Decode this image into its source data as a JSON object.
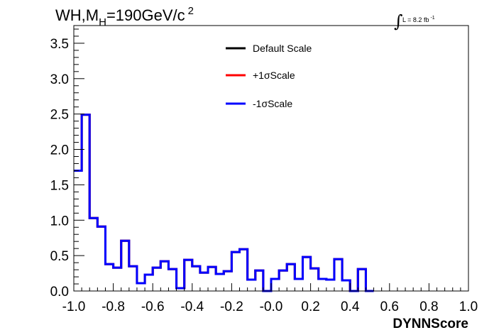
{
  "chart_data": {
    "type": "step",
    "title_main": "WH,M",
    "title_sub": "H",
    "title_rest": "=190GeV/c",
    "title_sup": "2",
    "lumi_main": "L = 8.2 fb",
    "lumi_sup": "-1",
    "xlabel": "DYNNScore",
    "ylabel": "",
    "xlim": [
      -1.0,
      1.0
    ],
    "ylim": [
      0,
      3.75
    ],
    "x_ticks": [
      -1.0,
      -0.8,
      -0.6,
      -0.4,
      -0.2,
      0.0,
      0.2,
      0.4,
      0.6,
      0.8,
      1.0
    ],
    "x_tick_labels": [
      "-1.0",
      "-0.8",
      "-0.6",
      "-0.4",
      "-0.2",
      "-0.0",
      "0.2",
      "0.4",
      "0.6",
      "0.8",
      "1.0"
    ],
    "y_ticks": [
      0.0,
      0.5,
      1.0,
      1.5,
      2.0,
      2.5,
      3.0,
      3.5
    ],
    "y_tick_labels": [
      "0.0",
      "0.5",
      "1.0",
      "1.5",
      "2.0",
      "2.5",
      "3.0",
      "3.5"
    ],
    "legend_position": "top-center",
    "grid": false,
    "bin_edges_start": -1.0,
    "bin_width": 0.04,
    "series": [
      {
        "name": "Default Scale",
        "color": "#000000",
        "values": [
          1.7,
          2.49,
          1.03,
          0.91,
          0.38,
          0.33,
          0.71,
          0.35,
          0.11,
          0.23,
          0.33,
          0.42,
          0.31,
          0.04,
          0.44,
          0.35,
          0.26,
          0.34,
          0.24,
          0.28,
          0.55,
          0.59,
          0.16,
          0.29,
          0.0,
          0.17,
          0.29,
          0.38,
          0.17,
          0.48,
          0.32,
          0.17,
          0.16,
          0.45,
          0.15,
          0.0,
          0.31,
          0.0
        ]
      },
      {
        "name": "+1σScale",
        "color": "#ff0000",
        "values": [
          1.7,
          2.49,
          1.03,
          0.91,
          0.38,
          0.33,
          0.71,
          0.35,
          0.11,
          0.23,
          0.33,
          0.42,
          0.31,
          0.04,
          0.44,
          0.35,
          0.26,
          0.34,
          0.24,
          0.28,
          0.55,
          0.59,
          0.16,
          0.29,
          0.0,
          0.17,
          0.29,
          0.38,
          0.17,
          0.48,
          0.32,
          0.17,
          0.16,
          0.45,
          0.15,
          0.0,
          0.31,
          0.0
        ]
      },
      {
        "name": "-1σScale",
        "color": "#0000ff",
        "values": [
          1.7,
          2.49,
          1.03,
          0.91,
          0.38,
          0.33,
          0.71,
          0.35,
          0.11,
          0.23,
          0.33,
          0.42,
          0.31,
          0.04,
          0.44,
          0.35,
          0.26,
          0.34,
          0.24,
          0.28,
          0.55,
          0.59,
          0.16,
          0.29,
          0.0,
          0.17,
          0.29,
          0.38,
          0.17,
          0.48,
          0.32,
          0.17,
          0.16,
          0.45,
          0.15,
          0.0,
          0.31,
          0.0
        ]
      }
    ]
  }
}
